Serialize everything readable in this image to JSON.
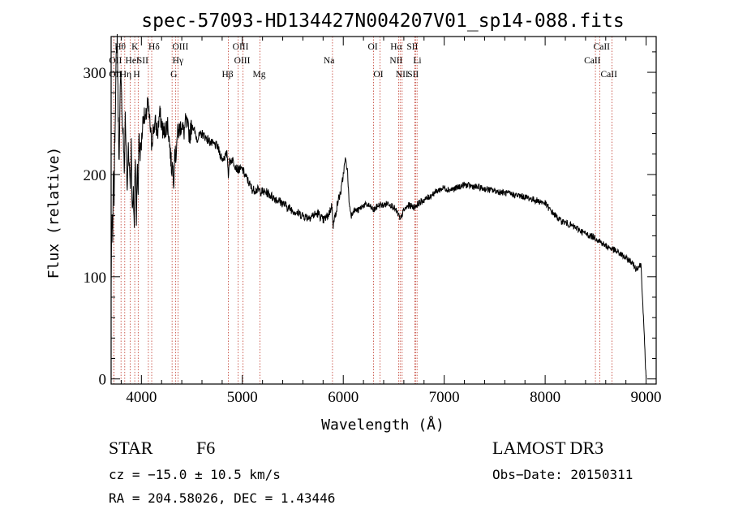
{
  "chart_data": {
    "type": "line",
    "title": "spec-57093-HD134427N004207V01_sp14-088.fits",
    "xlabel": "Wavelength (Å)",
    "ylabel": "Flux (relative)",
    "xlim": [
      3700,
      9100
    ],
    "ylim": [
      -5,
      335
    ],
    "x_ticks": [
      4000,
      5000,
      6000,
      7000,
      8000,
      9000
    ],
    "y_ticks": [
      0,
      100,
      200,
      300
    ],
    "series": [
      {
        "name": "flux",
        "x": [
          3700,
          3705,
          3710,
          3715,
          3720,
          3725,
          3730,
          3735,
          3740,
          3745,
          3750,
          3755,
          3760,
          3765,
          3770,
          3775,
          3780,
          3790,
          3800,
          3810,
          3820,
          3830,
          3840,
          3850,
          3860,
          3870,
          3880,
          3890,
          3900,
          3910,
          3920,
          3930,
          3933,
          3936,
          3940,
          3950,
          3960,
          3968,
          3975,
          3985,
          4000,
          4020,
          4040,
          4060,
          4080,
          4100,
          4120,
          4140,
          4160,
          4180,
          4200,
          4220,
          4240,
          4260,
          4280,
          4300,
          4310,
          4320,
          4330,
          4340,
          4350,
          4360,
          4380,
          4400,
          4420,
          4440,
          4460,
          4480,
          4500,
          4550,
          4600,
          4650,
          4700,
          4750,
          4800,
          4850,
          4861,
          4870,
          4900,
          4950,
          5000,
          5050,
          5100,
          5150,
          5200,
          5250,
          5300,
          5350,
          5400,
          5450,
          5500,
          5550,
          5600,
          5650,
          5700,
          5750,
          5800,
          5850,
          5890,
          5900,
          5950,
          5980,
          6000,
          6020,
          6040,
          6060,
          6080,
          6100,
          6150,
          6200,
          6250,
          6300,
          6350,
          6400,
          6450,
          6500,
          6550,
          6563,
          6580,
          6600,
          6650,
          6700,
          6750,
          6800,
          6850,
          6900,
          6950,
          7000,
          7050,
          7100,
          7150,
          7200,
          7300,
          7400,
          7500,
          7600,
          7700,
          7800,
          7900,
          8000,
          8050,
          8100,
          8150,
          8200,
          8300,
          8400,
          8500,
          8600,
          8650,
          8700,
          8750,
          8800,
          8850,
          8900,
          8950,
          9000
        ],
        "y": [
          90,
          145,
          160,
          130,
          185,
          205,
          175,
          230,
          250,
          290,
          310,
          320,
          335,
          300,
          260,
          240,
          210,
          280,
          300,
          250,
          240,
          200,
          260,
          220,
          180,
          230,
          210,
          190,
          230,
          160,
          180,
          150,
          185,
          200,
          220,
          160,
          205,
          180,
          240,
          220,
          230,
          260,
          250,
          270,
          255,
          230,
          245,
          250,
          240,
          260,
          250,
          240,
          245,
          250,
          230,
          205,
          210,
          195,
          225,
          215,
          235,
          240,
          245,
          250,
          240,
          252,
          245,
          238,
          250,
          235,
          240,
          235,
          230,
          228,
          215,
          220,
          200,
          212,
          215,
          205,
          205,
          195,
          185,
          185,
          183,
          182,
          178,
          175,
          172,
          168,
          165,
          162,
          160,
          158,
          160,
          162,
          155,
          160,
          170,
          150,
          175,
          185,
          200,
          215,
          205,
          170,
          160,
          165,
          165,
          170,
          170,
          165,
          170,
          170,
          172,
          168,
          160,
          155,
          160,
          165,
          170,
          168,
          172,
          175,
          178,
          182,
          185,
          187,
          185,
          186,
          188,
          190,
          188,
          186,
          184,
          182,
          180,
          178,
          175,
          172,
          165,
          160,
          155,
          153,
          148,
          142,
          138,
          130,
          128,
          125,
          122,
          118,
          115,
          108,
          112,
          0
        ]
      }
    ],
    "line_markers": [
      {
        "label": "Hθ",
        "wavelength": 3798,
        "row": 1,
        "dx": -8
      },
      {
        "label": "OII",
        "wavelength": 3727,
        "row": 2,
        "dx": -6
      },
      {
        "label": "OII",
        "wavelength": 3727,
        "row": 3,
        "dx": -6
      },
      {
        "label": "K",
        "wavelength": 3934,
        "row": 1,
        "dx": -4
      },
      {
        "label": "HeI",
        "wavelength": 3889,
        "row": 2,
        "dx": -6
      },
      {
        "label": "Hη",
        "wavelength": 3835,
        "row": 3,
        "dx": -6
      },
      {
        "label": "SII",
        "wavelength": 4069,
        "row": 2,
        "dx": -14
      },
      {
        "label": "H",
        "wavelength": 3968,
        "row": 3,
        "dx": -6
      },
      {
        "label": "Hδ",
        "wavelength": 4102,
        "row": 1,
        "dx": -4
      },
      {
        "label": "OIII",
        "wavelength": 4363,
        "row": 1,
        "dx": -7
      },
      {
        "label": "Hγ",
        "wavelength": 4340,
        "row": 2,
        "dx": -4
      },
      {
        "label": "G",
        "wavelength": 4304,
        "row": 3,
        "dx": -2
      },
      {
        "label": "Hβ",
        "wavelength": 4861,
        "row": 3,
        "dx": -8
      },
      {
        "label": "OIII",
        "wavelength": 5007,
        "row": 1,
        "dx": -13
      },
      {
        "label": "OIII",
        "wavelength": 4959,
        "row": 2,
        "dx": -5
      },
      {
        "label": "Mg",
        "wavelength": 5175,
        "row": 3,
        "dx": -9
      },
      {
        "label": "Na",
        "wavelength": 5893,
        "row": 2,
        "dx": -11
      },
      {
        "label": "OI",
        "wavelength": 6300,
        "row": 1,
        "dx": -7
      },
      {
        "label": "OI",
        "wavelength": 6363,
        "row": 3,
        "dx": -8
      },
      {
        "label": "Hα",
        "wavelength": 6563,
        "row": 1,
        "dx": -12
      },
      {
        "label": "NII",
        "wavelength": 6548,
        "row": 2,
        "dx": -11
      },
      {
        "label": "NII",
        "wavelength": 6583,
        "row": 3,
        "dx": -8
      },
      {
        "label": "SII",
        "wavelength": 6716,
        "row": 1,
        "dx": -11
      },
      {
        "label": "Li",
        "wavelength": 6708,
        "row": 2,
        "dx": -2
      },
      {
        "label": "SII",
        "wavelength": 6731,
        "row": 3,
        "dx": -12
      },
      {
        "label": "CaII",
        "wavelength": 8542,
        "row": 1,
        "dx": -8
      },
      {
        "label": "CaII",
        "wavelength": 8498,
        "row": 2,
        "dx": -14
      },
      {
        "label": "CaII",
        "wavelength": 8662,
        "row": 3,
        "dx": -14
      }
    ]
  },
  "info": {
    "object_class": "STAR",
    "subclass": "F6",
    "survey": "LAMOST DR3",
    "redshift_text": "cz = −15.0 ± 10.5 km/s",
    "obs_date": "Obs−Date: 20150311",
    "coords": "RA = 204.58026, DEC =    1.43446"
  },
  "colors": {
    "marker_line": "#c0392b",
    "spectrum": "#000000"
  }
}
